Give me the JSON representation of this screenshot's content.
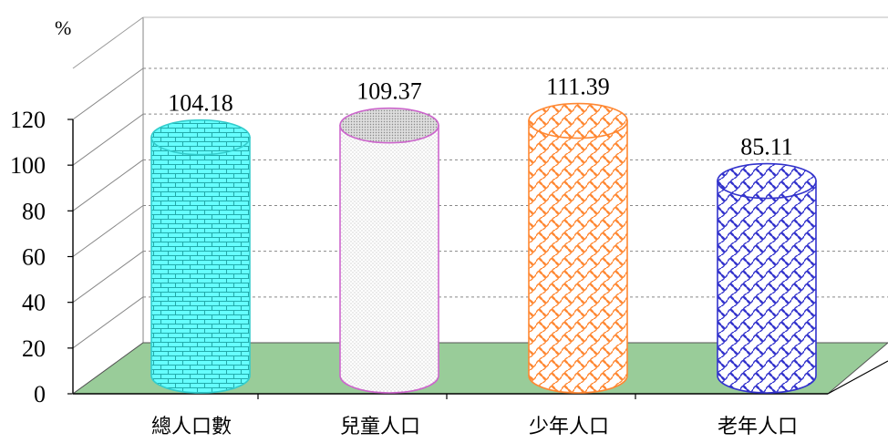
{
  "chart_data": {
    "type": "bar",
    "title": "",
    "xlabel": "",
    "ylabel": "%",
    "categories": [
      "總人口數",
      "兒童人口",
      "少年人口",
      "老年人口"
    ],
    "values": [
      104.18,
      109.37,
      111.39,
      85.11
    ],
    "value_labels": [
      "104.18",
      "109.37",
      "111.39",
      "85.11"
    ],
    "yticks": [
      "0",
      "20",
      "40",
      "60",
      "80",
      "100",
      "120"
    ],
    "ylim": [
      0,
      120
    ],
    "grid": true,
    "legend": "none",
    "bar_shape": "cylinder-3d",
    "colors": [
      "#33cccc",
      "#cc66cc",
      "#ff8833",
      "#3333cc"
    ],
    "fill_colors": [
      "#66ffff",
      "#ffffff",
      "#ffffff",
      "#ffffff"
    ],
    "patterns": [
      "brick",
      "dots",
      "weave",
      "weave"
    ],
    "floor_color": "#99cc99"
  }
}
